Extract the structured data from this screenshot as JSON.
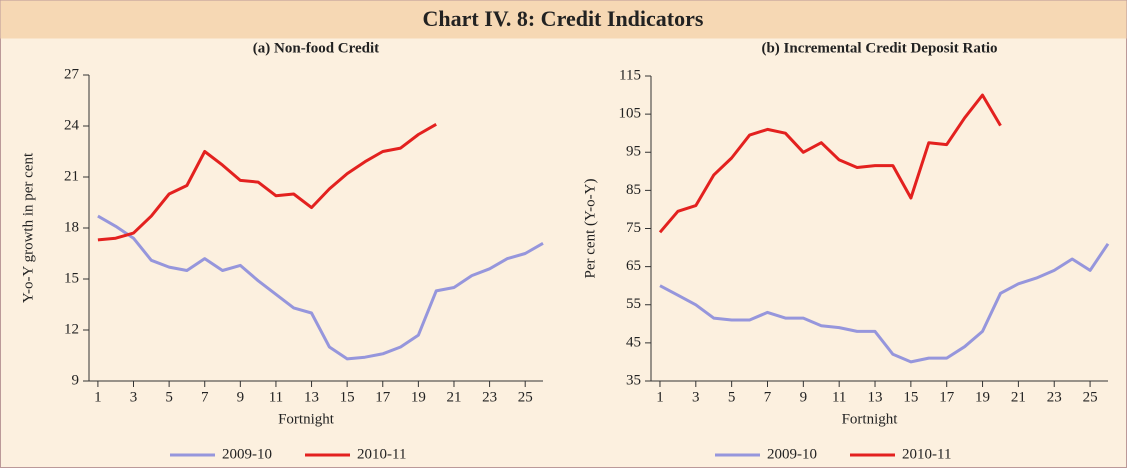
{
  "title": "Chart IV. 8: Credit Indicators",
  "chart_data": [
    {
      "type": "line",
      "title": "(a) Non-food Credit",
      "xlabel": "Fortnight",
      "ylabel": "Y-o-Y growth in per  cent",
      "x": [
        1,
        2,
        3,
        4,
        5,
        6,
        7,
        8,
        9,
        10,
        11,
        12,
        13,
        14,
        15,
        16,
        17,
        18,
        19,
        20,
        21,
        22,
        23,
        24,
        25,
        26
      ],
      "xlim": [
        0.5,
        26
      ],
      "xticks": [
        1,
        3,
        5,
        7,
        9,
        11,
        13,
        15,
        17,
        19,
        21,
        23,
        25
      ],
      "ylim": [
        9,
        27
      ],
      "yticks": [
        9,
        12,
        15,
        18,
        21,
        24,
        27
      ],
      "series": [
        {
          "name": "2009-10",
          "color": "#9696dc",
          "values": [
            18.7,
            18.1,
            17.4,
            16.1,
            15.7,
            15.5,
            16.2,
            15.5,
            15.8,
            14.9,
            14.1,
            13.3,
            13.0,
            11.0,
            10.3,
            10.4,
            10.6,
            11.0,
            11.7,
            14.3,
            14.5,
            15.2,
            15.6,
            16.2,
            16.5,
            17.1
          ]
        },
        {
          "name": "2010-11",
          "color": "#e3211f",
          "values": [
            17.3,
            17.4,
            17.7,
            18.7,
            20.0,
            20.5,
            22.5,
            21.7,
            20.8,
            20.7,
            19.9,
            20.0,
            19.2,
            20.3,
            21.2,
            21.9,
            22.5,
            22.7,
            23.5,
            24.1,
            null,
            null,
            null,
            null,
            null,
            null
          ]
        }
      ]
    },
    {
      "type": "line",
      "title": "(b) Incremental Credit Deposit Ratio",
      "xlabel": "Fortnight",
      "ylabel": "Per cent (Y-o-Y)",
      "x": [
        1,
        2,
        3,
        4,
        5,
        6,
        7,
        8,
        9,
        10,
        11,
        12,
        13,
        14,
        15,
        16,
        17,
        18,
        19,
        20,
        21,
        22,
        23,
        24,
        25,
        26
      ],
      "xlim": [
        0.5,
        26
      ],
      "xticks": [
        1,
        3,
        5,
        7,
        9,
        11,
        13,
        15,
        17,
        19,
        21,
        23,
        25
      ],
      "ylim": [
        35,
        115
      ],
      "yticks": [
        35,
        45,
        55,
        65,
        75,
        85,
        95,
        105,
        115
      ],
      "series": [
        {
          "name": "2009-10",
          "color": "#9696dc",
          "values": [
            60,
            57.5,
            55,
            51.5,
            51,
            51,
            53,
            51.5,
            51.5,
            49.5,
            49,
            48,
            48,
            42,
            40,
            41,
            41,
            44,
            48,
            58,
            60.5,
            62,
            64,
            67,
            64,
            71
          ]
        },
        {
          "name": "2010-11",
          "color": "#e3211f",
          "values": [
            74,
            79.5,
            81,
            89,
            93.5,
            99.5,
            101,
            100,
            95,
            97.5,
            93,
            91,
            91.5,
            91.5,
            83,
            97.5,
            97,
            104,
            110,
            102,
            null,
            null,
            null,
            null,
            null,
            null
          ]
        }
      ]
    }
  ]
}
